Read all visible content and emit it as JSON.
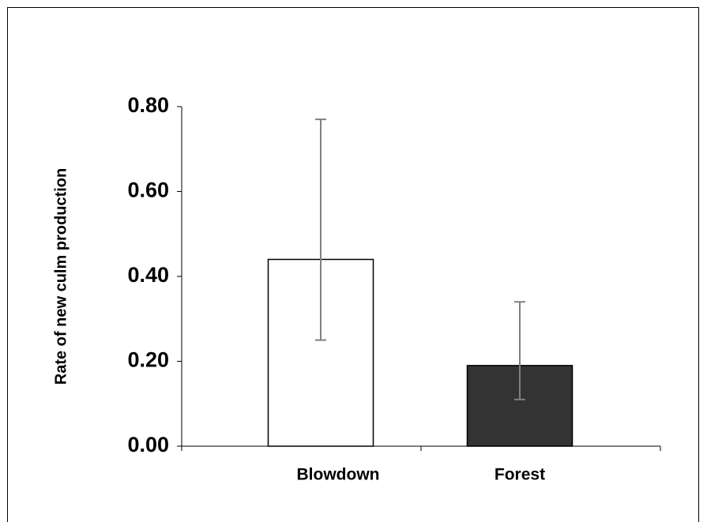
{
  "chart_data": {
    "type": "bar",
    "y_label": "Rate of new culm production",
    "categories": [
      "Blowdown",
      "Forest"
    ],
    "values": [
      0.44,
      0.19
    ],
    "error_low": [
      0.25,
      0.11
    ],
    "error_high": [
      0.77,
      0.34
    ],
    "colors": [
      "#ffffff",
      "#333333"
    ],
    "error_color": "#808080",
    "ylim": [
      0,
      0.8
    ],
    "yticks": [
      {
        "value": 0,
        "label": "0.00"
      },
      {
        "value": 0.2,
        "label": "0.20"
      },
      {
        "value": 0.4,
        "label": "0.40"
      },
      {
        "value": 0.6,
        "label": "0.60"
      },
      {
        "value": 0.8,
        "label": "0.80"
      }
    ]
  }
}
